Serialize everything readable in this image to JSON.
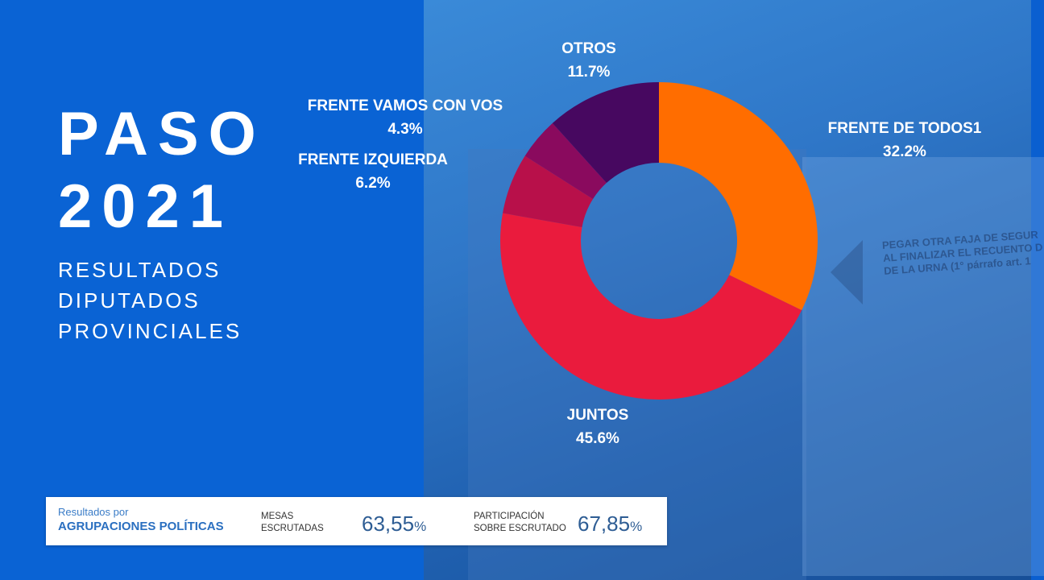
{
  "title": {
    "line1": "PASO",
    "line2": "2021"
  },
  "subtitle": {
    "line1": "RESULTADOS",
    "line2": "DIPUTADOS",
    "line3": "PROVINCIALES"
  },
  "background_text": {
    "line1": "PEGAR OTRA FAJA DE SEGUR",
    "line2": "AL FINALIZAR EL RECUENTO D",
    "line3": "DE LA URNA (1° párrafo art. 1"
  },
  "chart_data": {
    "type": "pie",
    "variant": "donut",
    "start": "12 o'clock, clockwise",
    "series": [
      {
        "name": "FRENTE DE TODOS1",
        "value": 32.2,
        "label": "32.2%",
        "color": "#ff6d00"
      },
      {
        "name": "JUNTOS",
        "value": 45.6,
        "label": "45.6%",
        "color": "#ea1b3d"
      },
      {
        "name": "FRENTE IZQUIERDA",
        "value": 6.2,
        "label": "6.2%",
        "color": "#b8104a"
      },
      {
        "name": "FRENTE VAMOS CON VOS",
        "value": 4.3,
        "label": "4.3%",
        "color": "#8a0a5e"
      },
      {
        "name": "OTROS",
        "value": 11.7,
        "label": "11.7%",
        "color": "#470860"
      }
    ]
  },
  "footer": {
    "results_prefix": "Resultados por",
    "results_title": "AGRUPACIONES POLÍTICAS",
    "mesas_label_1": "MESAS",
    "mesas_label_2": "ESCRUTADAS",
    "mesas_value": "63,55",
    "participacion_label_1": "PARTICIPACIÓN",
    "participacion_label_2": "SOBRE ESCRUTADO",
    "participacion_value": "67,85",
    "percent_sign": "%"
  }
}
